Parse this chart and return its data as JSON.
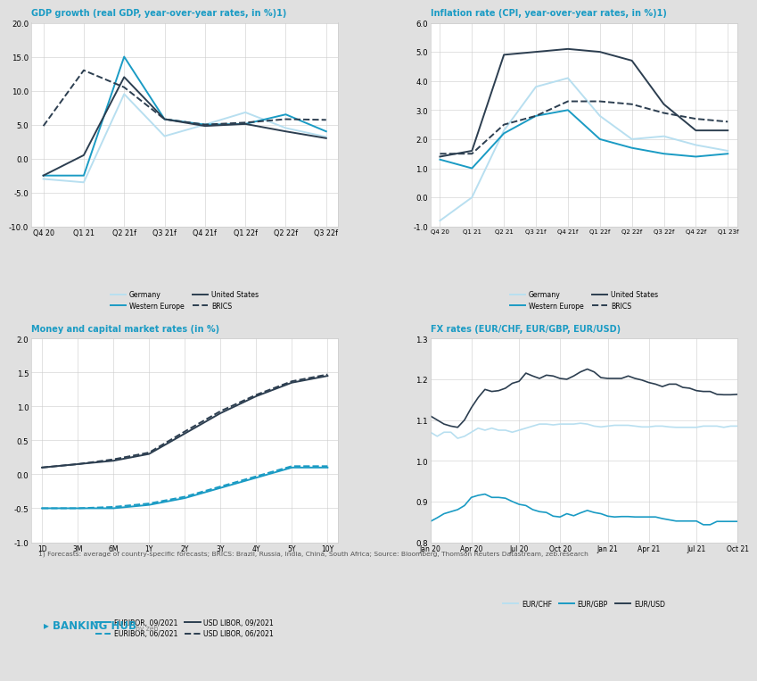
{
  "background_color": "#e0e0e0",
  "panel_color": "#ffffff",
  "title_color": "#1a9bc4",
  "footnote_color": "#555555",
  "grid_color": "#cccccc",
  "gdp": {
    "title": "GDP growth (real GDP, year-over-year rates, in %)",
    "title_sup": "1)",
    "xlabel_ticks": [
      "Q4 20",
      "Q1 21",
      "Q2 21f",
      "Q3 21f",
      "Q4 21f",
      "Q1 22f",
      "Q2 22f",
      "Q3 22f"
    ],
    "ylim": [
      -10.0,
      20.0
    ],
    "yticks": [
      -10.0,
      -5.0,
      0.0,
      5.0,
      10.0,
      15.0,
      20.0
    ],
    "germany": [
      -3.0,
      -3.5,
      9.5,
      3.3,
      5.0,
      6.8,
      4.5,
      3.2
    ],
    "western_europe": [
      -2.5,
      -2.5,
      15.0,
      5.8,
      5.0,
      5.1,
      6.5,
      4.0
    ],
    "united_states": [
      -2.5,
      0.5,
      12.0,
      5.8,
      4.8,
      5.1,
      4.0,
      3.0
    ],
    "brics": [
      4.8,
      13.0,
      10.5,
      5.8,
      5.0,
      5.3,
      5.8,
      5.7
    ],
    "germany_color": "#b8dff0",
    "western_europe_color": "#1a9bc4",
    "united_states_color": "#2c3e50",
    "brics_color": "#2c3e50"
  },
  "inflation": {
    "title": "Inflation rate (CPI, year-over-year rates, in %)",
    "title_sup": "1)",
    "xlabel_ticks": [
      "Q4 20",
      "Q1 21",
      "Q2 21",
      "Q3 21f",
      "Q4 21f",
      "Q1 22f",
      "Q2 22f",
      "Q3 22f",
      "Q4 22f",
      "Q1 23f"
    ],
    "ylim": [
      -1.0,
      6.0
    ],
    "yticks": [
      -1.0,
      0.0,
      1.0,
      2.0,
      3.0,
      4.0,
      5.0,
      6.0
    ],
    "germany": [
      -0.8,
      0.0,
      2.3,
      3.8,
      4.1,
      2.8,
      2.0,
      2.1,
      1.8,
      1.6
    ],
    "western_europe": [
      1.3,
      1.0,
      2.2,
      2.8,
      3.0,
      2.0,
      1.7,
      1.5,
      1.4,
      1.5
    ],
    "united_states": [
      1.4,
      1.6,
      4.9,
      5.0,
      5.1,
      5.0,
      4.7,
      3.2,
      2.3,
      2.3
    ],
    "brics": [
      1.5,
      1.5,
      2.5,
      2.8,
      3.3,
      3.3,
      3.2,
      2.9,
      2.7,
      2.6
    ],
    "germany_color": "#b8dff0",
    "western_europe_color": "#1a9bc4",
    "united_states_color": "#2c3e50",
    "brics_color": "#2c3e50"
  },
  "money": {
    "title": "Money and capital market rates (in %)",
    "xlabel_ticks": [
      "1D",
      "3M",
      "6M",
      "1Y",
      "2Y",
      "3Y",
      "4Y",
      "5Y",
      "10Y"
    ],
    "xlabel_ticks_display": [
      "1D 3M 6M 1Y",
      "2Y",
      "3Y",
      "4Y",
      "5Y",
      "10Y"
    ],
    "ylim": [
      -1.0,
      2.0
    ],
    "yticks": [
      -1.0,
      -0.5,
      0.0,
      0.5,
      1.0,
      1.5,
      2.0
    ],
    "euribor_sep": [
      -0.5,
      -0.5,
      -0.5,
      -0.45,
      -0.35,
      -0.2,
      -0.05,
      0.1,
      0.1
    ],
    "euribor_jun": [
      -0.5,
      -0.5,
      -0.48,
      -0.43,
      -0.33,
      -0.18,
      -0.03,
      0.12,
      0.12
    ],
    "usd_libor_sep": [
      0.1,
      0.15,
      0.2,
      0.3,
      0.6,
      0.9,
      1.15,
      1.35,
      1.45
    ],
    "usd_libor_jun": [
      0.1,
      0.15,
      0.22,
      0.32,
      0.63,
      0.93,
      1.17,
      1.37,
      1.47
    ],
    "euribor_sep_color": "#1a9bc4",
    "euribor_jun_color": "#1a9bc4",
    "usd_libor_sep_color": "#2c3e50",
    "usd_libor_jun_color": "#2c3e50"
  },
  "fx": {
    "title": "FX rates (EUR/CHF, EUR/GBP, EUR/USD)",
    "ylim": [
      0.8,
      1.3
    ],
    "yticks": [
      0.8,
      0.9,
      1.0,
      1.1,
      1.2,
      1.3
    ],
    "xlabel_ticks": [
      "Jan 20",
      "Apr 20",
      "Jul 20",
      "Oct 20",
      "Jan 21",
      "Apr 21",
      "Jul 21",
      "Oct 21"
    ],
    "eur_chf": [
      1.07,
      1.06,
      1.07,
      1.07,
      1.055,
      1.06,
      1.07,
      1.08,
      1.075,
      1.08,
      1.075,
      1.075,
      1.07,
      1.075,
      1.08,
      1.085,
      1.09,
      1.09,
      1.088,
      1.09,
      1.09,
      1.09,
      1.092,
      1.09,
      1.085,
      1.083,
      1.085,
      1.087,
      1.087,
      1.087,
      1.085,
      1.083,
      1.083,
      1.085,
      1.085,
      1.083,
      1.082,
      1.082,
      1.082,
      1.082,
      1.085,
      1.085,
      1.085,
      1.082,
      1.085,
      1.085
    ],
    "eur_gbp": [
      0.851,
      0.86,
      0.87,
      0.875,
      0.88,
      0.89,
      0.91,
      0.915,
      0.918,
      0.91,
      0.91,
      0.908,
      0.9,
      0.893,
      0.89,
      0.88,
      0.875,
      0.873,
      0.864,
      0.862,
      0.87,
      0.865,
      0.872,
      0.878,
      0.873,
      0.87,
      0.864,
      0.862,
      0.863,
      0.863,
      0.862,
      0.862,
      0.862,
      0.862,
      0.858,
      0.855,
      0.852,
      0.852,
      0.852,
      0.852,
      0.843,
      0.843,
      0.851,
      0.851,
      0.851,
      0.851
    ],
    "eur_usd": [
      1.11,
      1.1,
      1.09,
      1.085,
      1.082,
      1.1,
      1.13,
      1.155,
      1.175,
      1.17,
      1.172,
      1.178,
      1.19,
      1.195,
      1.215,
      1.208,
      1.202,
      1.21,
      1.208,
      1.202,
      1.2,
      1.208,
      1.218,
      1.225,
      1.218,
      1.204,
      1.202,
      1.202,
      1.202,
      1.208,
      1.202,
      1.198,
      1.192,
      1.188,
      1.182,
      1.188,
      1.188,
      1.18,
      1.178,
      1.172,
      1.17,
      1.17,
      1.163,
      1.162,
      1.162,
      1.163
    ],
    "eur_chf_color": "#b8dff0",
    "eur_gbp_color": "#1a9bc4",
    "eur_usd_color": "#2c3e50"
  },
  "footnote": "1) Forecasts: average of country-specific forecasts; BRICS: Brazil, Russia, India, China, South Africa; Source: Bloomberg, Thomson Reuters Datastream, zeb.research"
}
